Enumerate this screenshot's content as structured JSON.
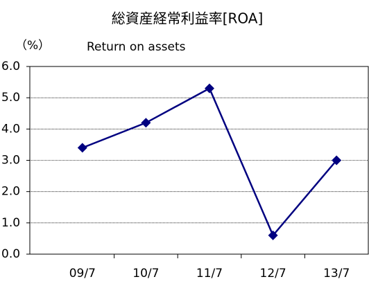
{
  "chart_data": {
    "type": "line",
    "title": "総資産経常利益率[ROA]",
    "subtitle": "Return on assets",
    "y_axis_label": "（%）",
    "categories": [
      "09/7",
      "10/7",
      "11/7",
      "12/7",
      "13/7"
    ],
    "series": [
      {
        "name": "ROA",
        "color": "#000080",
        "values": [
          3.4,
          4.2,
          5.3,
          0.6,
          3.0
        ]
      }
    ],
    "ylim": [
      0,
      6
    ],
    "yticks": [
      {
        "value": 0,
        "label": "0.0"
      },
      {
        "value": 1,
        "label": "1.0"
      },
      {
        "value": 2,
        "label": "2.0"
      },
      {
        "value": 3,
        "label": "3.0"
      },
      {
        "value": 4,
        "label": "4.0"
      },
      {
        "value": 5,
        "label": "5.0"
      },
      {
        "value": 6,
        "label": "6.0"
      }
    ],
    "grid": true
  }
}
